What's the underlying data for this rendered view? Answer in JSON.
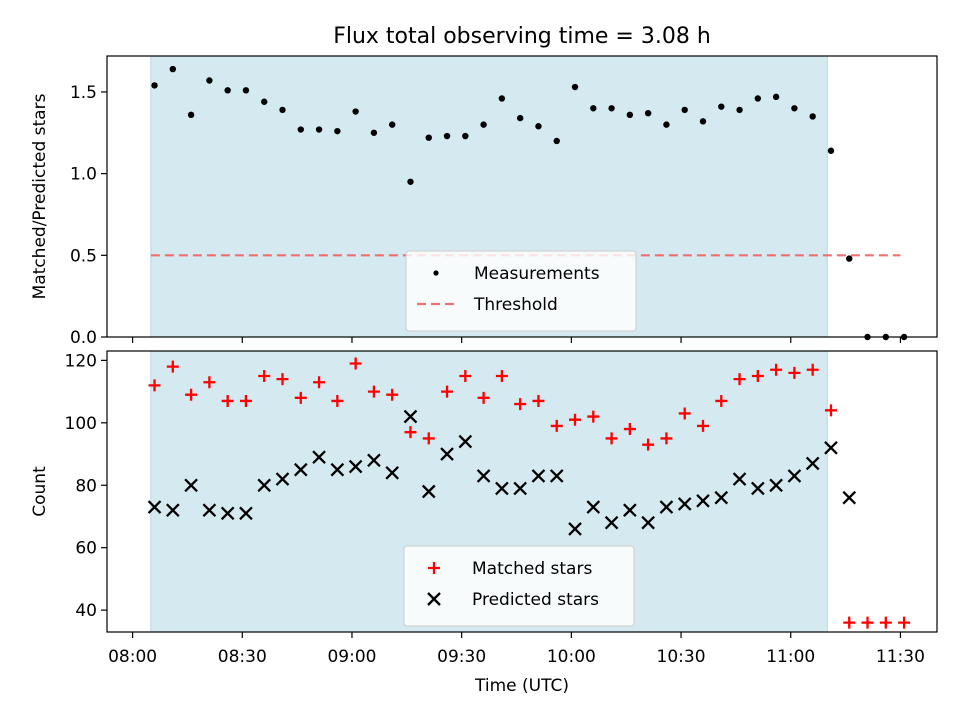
{
  "chart_data": {
    "title": "Flux total observing time = 3.08 h",
    "xlabel": "Time (UTC)",
    "x_ticks": [
      "08:00",
      "08:30",
      "09:00",
      "09:30",
      "10:00",
      "10:30",
      "11:00",
      "11:30"
    ],
    "xlim": [
      "07:53",
      "11:40"
    ],
    "observing_window": [
      "08:05",
      "11:10"
    ],
    "observing_window_color": "#d4eaf0",
    "panels": [
      {
        "type": "scatter",
        "ylabel": "Matched/Predicted stars",
        "ylim": [
          0.0,
          1.72
        ],
        "y_ticks": [
          0.0,
          0.5,
          1.0,
          1.5
        ],
        "grid": false,
        "legend_position": "lower center",
        "threshold": {
          "name": "Threshold",
          "value": 0.5,
          "x_range": [
            "08:05",
            "11:30"
          ],
          "color": "#f07070"
        },
        "series": [
          {
            "name": "Measurements",
            "marker": "dot",
            "color": "#000000",
            "points": [
              [
                "08:06",
                1.54
              ],
              [
                "08:11",
                1.64
              ],
              [
                "08:16",
                1.36
              ],
              [
                "08:21",
                1.57
              ],
              [
                "08:26",
                1.51
              ],
              [
                "08:31",
                1.51
              ],
              [
                "08:36",
                1.44
              ],
              [
                "08:41",
                1.39
              ],
              [
                "08:46",
                1.27
              ],
              [
                "08:51",
                1.27
              ],
              [
                "08:56",
                1.26
              ],
              [
                "09:01",
                1.38
              ],
              [
                "09:06",
                1.25
              ],
              [
                "09:11",
                1.3
              ],
              [
                "09:16",
                0.95
              ],
              [
                "09:21",
                1.22
              ],
              [
                "09:26",
                1.23
              ],
              [
                "09:31",
                1.23
              ],
              [
                "09:36",
                1.3
              ],
              [
                "09:41",
                1.46
              ],
              [
                "09:46",
                1.34
              ],
              [
                "09:51",
                1.29
              ],
              [
                "09:56",
                1.2
              ],
              [
                "10:01",
                1.53
              ],
              [
                "10:06",
                1.4
              ],
              [
                "10:11",
                1.4
              ],
              [
                "10:16",
                1.36
              ],
              [
                "10:21",
                1.37
              ],
              [
                "10:26",
                1.3
              ],
              [
                "10:31",
                1.39
              ],
              [
                "10:36",
                1.32
              ],
              [
                "10:41",
                1.41
              ],
              [
                "10:46",
                1.39
              ],
              [
                "10:51",
                1.46
              ],
              [
                "10:56",
                1.47
              ],
              [
                "11:01",
                1.4
              ],
              [
                "11:06",
                1.35
              ],
              [
                "11:11",
                1.14
              ],
              [
                "11:16",
                0.48
              ],
              [
                "11:21",
                0.0
              ],
              [
                "11:26",
                0.0
              ],
              [
                "11:31",
                0.0
              ]
            ]
          }
        ]
      },
      {
        "type": "scatter",
        "ylabel": "Count",
        "ylim": [
          33,
          123
        ],
        "y_ticks": [
          40,
          60,
          80,
          100,
          120
        ],
        "grid": false,
        "legend_position": "lower center",
        "series": [
          {
            "name": "Matched stars",
            "marker": "plus",
            "color": "#ff0000",
            "points": [
              [
                "08:06",
                112
              ],
              [
                "08:11",
                118
              ],
              [
                "08:16",
                109
              ],
              [
                "08:21",
                113
              ],
              [
                "08:26",
                107
              ],
              [
                "08:31",
                107
              ],
              [
                "08:36",
                115
              ],
              [
                "08:41",
                114
              ],
              [
                "08:46",
                108
              ],
              [
                "08:51",
                113
              ],
              [
                "08:56",
                107
              ],
              [
                "09:01",
                119
              ],
              [
                "09:06",
                110
              ],
              [
                "09:11",
                109
              ],
              [
                "09:16",
                97
              ],
              [
                "09:21",
                95
              ],
              [
                "09:26",
                110
              ],
              [
                "09:31",
                115
              ],
              [
                "09:36",
                108
              ],
              [
                "09:41",
                115
              ],
              [
                "09:46",
                106
              ],
              [
                "09:51",
                107
              ],
              [
                "09:56",
                99
              ],
              [
                "10:01",
                101
              ],
              [
                "10:06",
                102
              ],
              [
                "10:11",
                95
              ],
              [
                "10:16",
                98
              ],
              [
                "10:21",
                93
              ],
              [
                "10:26",
                95
              ],
              [
                "10:31",
                103
              ],
              [
                "10:36",
                99
              ],
              [
                "10:41",
                107
              ],
              [
                "10:46",
                114
              ],
              [
                "10:51",
                115
              ],
              [
                "10:56",
                117
              ],
              [
                "11:01",
                116
              ],
              [
                "11:06",
                117
              ],
              [
                "11:11",
                104
              ],
              [
                "11:16",
                36
              ],
              [
                "11:21",
                36
              ],
              [
                "11:26",
                36
              ],
              [
                "11:31",
                36
              ]
            ]
          },
          {
            "name": "Predicted stars",
            "marker": "x",
            "color": "#000000",
            "points": [
              [
                "08:06",
                73
              ],
              [
                "08:11",
                72
              ],
              [
                "08:16",
                80
              ],
              [
                "08:21",
                72
              ],
              [
                "08:26",
                71
              ],
              [
                "08:31",
                71
              ],
              [
                "08:36",
                80
              ],
              [
                "08:41",
                82
              ],
              [
                "08:46",
                85
              ],
              [
                "08:51",
                89
              ],
              [
                "08:56",
                85
              ],
              [
                "09:01",
                86
              ],
              [
                "09:06",
                88
              ],
              [
                "09:11",
                84
              ],
              [
                "09:16",
                102
              ],
              [
                "09:21",
                78
              ],
              [
                "09:26",
                90
              ],
              [
                "09:31",
                94
              ],
              [
                "09:36",
                83
              ],
              [
                "09:41",
                79
              ],
              [
                "09:46",
                79
              ],
              [
                "09:51",
                83
              ],
              [
                "09:56",
                83
              ],
              [
                "10:01",
                66
              ],
              [
                "10:06",
                73
              ],
              [
                "10:11",
                68
              ],
              [
                "10:16",
                72
              ],
              [
                "10:21",
                68
              ],
              [
                "10:26",
                73
              ],
              [
                "10:31",
                74
              ],
              [
                "10:36",
                75
              ],
              [
                "10:41",
                76
              ],
              [
                "10:46",
                82
              ],
              [
                "10:51",
                79
              ],
              [
                "10:56",
                80
              ],
              [
                "11:01",
                83
              ],
              [
                "11:06",
                87
              ],
              [
                "11:11",
                92
              ],
              [
                "11:16",
                76
              ]
            ]
          }
        ]
      }
    ]
  }
}
